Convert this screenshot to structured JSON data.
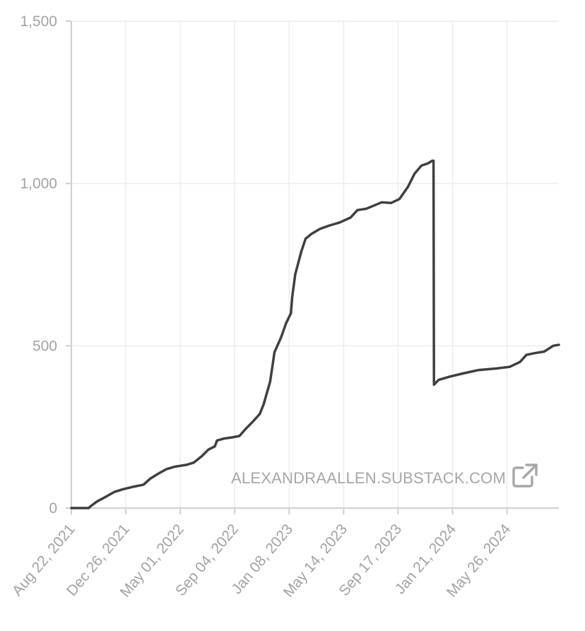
{
  "watermark": {
    "text": "ALEXANDRAALLEN.SUBSTACK.COM",
    "icon": "external-link-icon"
  },
  "chart_data": {
    "type": "line",
    "title": "",
    "xlabel": "",
    "ylabel": "",
    "ylim": [
      0,
      1500
    ],
    "xlim": [
      "2021-08-22",
      "2024-09-23"
    ],
    "grid": true,
    "legend": "none",
    "y_ticks": [
      {
        "value": 0,
        "label": "0"
      },
      {
        "value": 500,
        "label": "500"
      },
      {
        "value": 1000,
        "label": "1,000"
      },
      {
        "value": 1500,
        "label": "1,500"
      }
    ],
    "x_ticks": [
      {
        "date": "2021-08-22",
        "label": "Aug 22, 2021"
      },
      {
        "date": "2021-12-26",
        "label": "Dec 26, 2021"
      },
      {
        "date": "2022-05-01",
        "label": "May 01, 2022"
      },
      {
        "date": "2022-09-04",
        "label": "Sep 04, 2022"
      },
      {
        "date": "2023-01-08",
        "label": "Jan 08, 2023"
      },
      {
        "date": "2023-05-14",
        "label": "May 14, 2023"
      },
      {
        "date": "2023-09-17",
        "label": "Sep 17, 2023"
      },
      {
        "date": "2024-01-21",
        "label": "Jan 21, 2024"
      },
      {
        "date": "2024-05-26",
        "label": "May 26, 2024"
      }
    ],
    "series": [
      {
        "color": "#3f3f3f",
        "points": [
          [
            "2021-08-22",
            0
          ],
          [
            "2021-10-01",
            0
          ],
          [
            "2021-10-05",
            5
          ],
          [
            "2021-10-20",
            20
          ],
          [
            "2021-11-10",
            35
          ],
          [
            "2021-11-30",
            50
          ],
          [
            "2021-12-20",
            58
          ],
          [
            "2022-01-10",
            65
          ],
          [
            "2022-02-05",
            72
          ],
          [
            "2022-02-20",
            90
          ],
          [
            "2022-03-10",
            105
          ],
          [
            "2022-03-30",
            120
          ],
          [
            "2022-04-20",
            128
          ],
          [
            "2022-05-15",
            133
          ],
          [
            "2022-06-01",
            140
          ],
          [
            "2022-06-20",
            160
          ],
          [
            "2022-07-05",
            180
          ],
          [
            "2022-07-20",
            190
          ],
          [
            "2022-07-25",
            208
          ],
          [
            "2022-08-10",
            214
          ],
          [
            "2022-08-30",
            218
          ],
          [
            "2022-09-15",
            222
          ],
          [
            "2022-09-30",
            245
          ],
          [
            "2022-10-15",
            265
          ],
          [
            "2022-11-01",
            290
          ],
          [
            "2022-11-10",
            320
          ],
          [
            "2022-11-25",
            390
          ],
          [
            "2022-12-05",
            480
          ],
          [
            "2022-12-20",
            525
          ],
          [
            "2023-01-01",
            570
          ],
          [
            "2023-01-12",
            600
          ],
          [
            "2023-01-15",
            650
          ],
          [
            "2023-01-22",
            720
          ],
          [
            "2023-02-05",
            790
          ],
          [
            "2023-02-15",
            830
          ],
          [
            "2023-03-01",
            845
          ],
          [
            "2023-03-20",
            860
          ],
          [
            "2023-04-10",
            870
          ],
          [
            "2023-05-05",
            880
          ],
          [
            "2023-05-30",
            895
          ],
          [
            "2023-06-15",
            918
          ],
          [
            "2023-07-05",
            922
          ],
          [
            "2023-07-25",
            933
          ],
          [
            "2023-08-10",
            942
          ],
          [
            "2023-09-01",
            940
          ],
          [
            "2023-09-20",
            952
          ],
          [
            "2023-10-10",
            990
          ],
          [
            "2023-10-25",
            1030
          ],
          [
            "2023-11-10",
            1055
          ],
          [
            "2023-11-25",
            1062
          ],
          [
            "2023-12-05",
            1070
          ],
          [
            "2023-12-08",
            1070
          ],
          [
            "2023-12-09",
            380
          ],
          [
            "2023-12-20",
            395
          ],
          [
            "2024-01-15",
            405
          ],
          [
            "2024-02-15",
            415
          ],
          [
            "2024-03-20",
            425
          ],
          [
            "2024-05-01",
            430
          ],
          [
            "2024-06-01",
            435
          ],
          [
            "2024-06-25",
            450
          ],
          [
            "2024-07-10",
            472
          ],
          [
            "2024-08-01",
            478
          ],
          [
            "2024-08-20",
            482
          ],
          [
            "2024-09-10",
            500
          ],
          [
            "2024-09-23",
            503
          ]
        ]
      }
    ]
  }
}
